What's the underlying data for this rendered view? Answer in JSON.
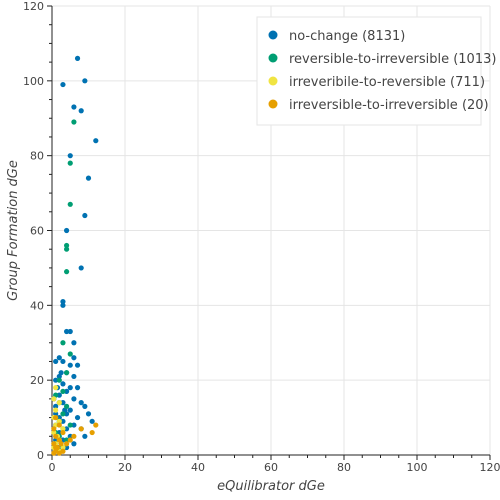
{
  "chart_data": {
    "type": "scatter",
    "xlabel": "eQuilibrator dGe",
    "ylabel": "Group Formation dGe",
    "xlim": [
      0,
      120
    ],
    "ylim": [
      0,
      120
    ],
    "x_ticks": [
      "0",
      "20",
      "40",
      "60",
      "80",
      "100",
      "120"
    ],
    "y_ticks": [
      "0",
      "20",
      "40",
      "60",
      "80",
      "100",
      "120"
    ],
    "grid": true,
    "legend_position": "top-right",
    "series": [
      {
        "name": "no-change (8131)",
        "color": "#0072b2",
        "points": [
          [
            7,
            106
          ],
          [
            9,
            100
          ],
          [
            3,
            99
          ],
          [
            6,
            93
          ],
          [
            8,
            92
          ],
          [
            12,
            84
          ],
          [
            5,
            80
          ],
          [
            10,
            74
          ],
          [
            9,
            64
          ],
          [
            4,
            60
          ],
          [
            8,
            50
          ],
          [
            3,
            41
          ],
          [
            3,
            40
          ],
          [
            5,
            33
          ],
          [
            4,
            33
          ],
          [
            6,
            30
          ],
          [
            2,
            26
          ],
          [
            3,
            25
          ],
          [
            1,
            25
          ],
          [
            5,
            24
          ],
          [
            4,
            22
          ],
          [
            2,
            21
          ],
          [
            6,
            21
          ],
          [
            1,
            20
          ],
          [
            3,
            19
          ],
          [
            5,
            18
          ],
          [
            7,
            18
          ],
          [
            4,
            17
          ],
          [
            2,
            16
          ],
          [
            6,
            15
          ],
          [
            8,
            14
          ],
          [
            3,
            14
          ],
          [
            9,
            13
          ],
          [
            1,
            13
          ],
          [
            5,
            12
          ],
          [
            10,
            11
          ],
          [
            4,
            11
          ],
          [
            2,
            10
          ],
          [
            7,
            10
          ],
          [
            11,
            9
          ],
          [
            3,
            9
          ],
          [
            6,
            8
          ],
          [
            1,
            8
          ],
          [
            8,
            7
          ],
          [
            4,
            7
          ],
          [
            2,
            6
          ],
          [
            5,
            5
          ],
          [
            9,
            5
          ],
          [
            3,
            4
          ],
          [
            1,
            4
          ],
          [
            6,
            3
          ],
          [
            2,
            2
          ],
          [
            4,
            2
          ],
          [
            0.5,
            15
          ],
          [
            1.5,
            18
          ],
          [
            2.5,
            22
          ],
          [
            6,
            26
          ],
          [
            7,
            24
          ],
          [
            3.5,
            12
          ],
          [
            1,
            11
          ]
        ]
      },
      {
        "name": "reversible-to-irreversible (1013)",
        "color": "#009e73",
        "points": [
          [
            6,
            89
          ],
          [
            5,
            78
          ],
          [
            5,
            67
          ],
          [
            4,
            56
          ],
          [
            4,
            55
          ],
          [
            4,
            49
          ],
          [
            3,
            30
          ],
          [
            5,
            27
          ],
          [
            4,
            22
          ],
          [
            2,
            20
          ],
          [
            3,
            17
          ],
          [
            1,
            16
          ],
          [
            2,
            14
          ],
          [
            4,
            13
          ],
          [
            3,
            11
          ],
          [
            1,
            10
          ],
          [
            2,
            9
          ],
          [
            5,
            8
          ],
          [
            3,
            7
          ],
          [
            1,
            6
          ],
          [
            2,
            5
          ],
          [
            4,
            4
          ],
          [
            1,
            3
          ],
          [
            3,
            2
          ]
        ]
      },
      {
        "name": "irreveribile-to-reversible (711)",
        "color": "#f0e442",
        "points": [
          [
            1,
            18
          ],
          [
            0.5,
            15
          ],
          [
            2,
            14
          ],
          [
            1,
            12
          ],
          [
            0.5,
            10
          ],
          [
            2,
            9
          ],
          [
            1,
            8
          ],
          [
            3,
            7
          ],
          [
            0.5,
            6
          ],
          [
            1.5,
            5
          ],
          [
            2,
            4
          ],
          [
            1,
            3
          ],
          [
            3,
            2
          ],
          [
            0.5,
            2
          ],
          [
            2,
            1
          ]
        ]
      },
      {
        "name": "irreversible-to-irreversible (20)",
        "color": "#e69f00",
        "points": [
          [
            1,
            10
          ],
          [
            2,
            8
          ],
          [
            0.5,
            7
          ],
          [
            3,
            6
          ],
          [
            1,
            5
          ],
          [
            2,
            4
          ],
          [
            4,
            3
          ],
          [
            0.5,
            3
          ],
          [
            1.5,
            2
          ],
          [
            3,
            1
          ],
          [
            1,
            1
          ],
          [
            2,
            0.5
          ],
          [
            12,
            8
          ],
          [
            11,
            6
          ],
          [
            8,
            7
          ],
          [
            6,
            5
          ],
          [
            5,
            4
          ],
          [
            0.5,
            0.5
          ],
          [
            2.5,
            3
          ],
          [
            1,
            2
          ]
        ]
      }
    ]
  }
}
